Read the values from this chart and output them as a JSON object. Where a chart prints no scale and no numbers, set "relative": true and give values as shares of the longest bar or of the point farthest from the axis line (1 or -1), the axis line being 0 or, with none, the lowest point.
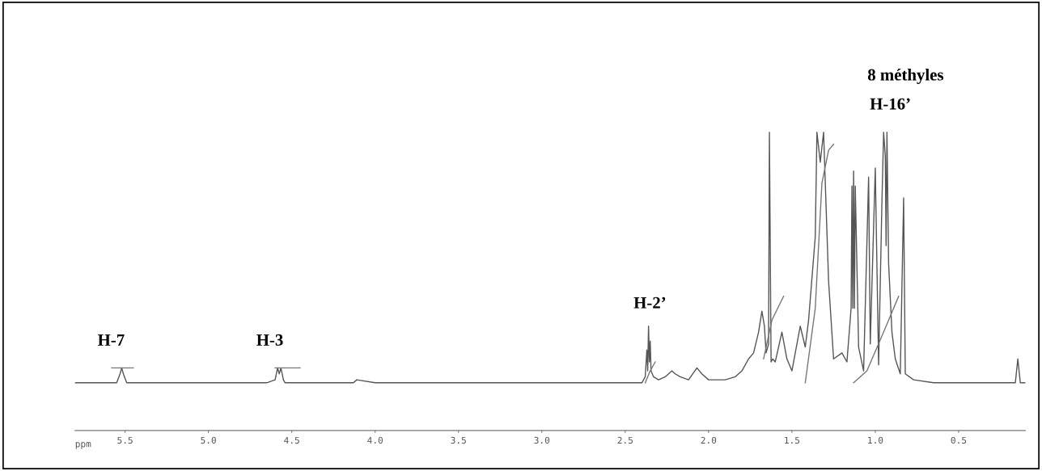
{
  "chart_data": {
    "type": "line",
    "relative": true,
    "xlabel": "ppm",
    "xlim": [
      5.8,
      0.1
    ],
    "xticks": [
      5.5,
      {
        "value": 5,
        "label": "5.0"
      },
      4.5,
      {
        "value": 4,
        "label": "4.0"
      },
      3.5,
      {
        "value": 3,
        "label": "3.0"
      },
      2.5,
      {
        "value": 2,
        "label": "2.0"
      },
      1.5,
      {
        "value": 1,
        "label": "1.0"
      },
      0.5
    ],
    "grid": false,
    "marker": "none",
    "line_style": "solid",
    "series": [
      {
        "color": "#555555",
        "x": [
          5.8,
          5.6,
          5.55,
          5.53,
          5.52,
          5.51,
          5.49,
          5.45,
          5.3,
          4.8,
          4.65,
          4.6,
          4.585,
          4.575,
          4.565,
          4.55,
          4.54,
          4.45,
          4.2,
          4.13,
          4.11,
          4.0,
          3.0,
          2.6,
          2.4,
          2.38,
          2.37,
          2.365,
          2.36,
          2.355,
          2.35,
          2.345,
          2.33,
          2.3,
          2.26,
          2.22,
          2.2,
          2.17,
          2.12,
          2.07,
          2.04,
          2.0,
          1.9,
          1.84,
          1.8,
          1.76,
          1.73,
          1.7,
          1.68,
          1.665,
          1.655,
          1.64,
          1.635,
          1.625,
          1.615,
          1.6,
          1.56,
          1.53,
          1.5,
          1.45,
          1.42,
          1.4,
          1.36,
          1.35,
          1.33,
          1.31,
          1.28,
          1.25,
          1.2,
          1.17,
          1.145,
          1.14,
          1.135,
          1.13,
          1.125,
          1.12,
          1.1,
          1.07,
          1.04,
          1.03,
          1.0,
          0.98,
          0.96,
          0.95,
          0.94,
          0.935,
          0.93,
          0.92,
          0.9,
          0.88,
          0.85,
          0.83,
          0.82,
          0.77,
          0.65,
          0.5,
          0.2,
          0.16,
          0.145,
          0.13,
          0.1
        ],
        "values": [
          0.16,
          0.16,
          0.16,
          0.19,
          0.21,
          0.19,
          0.16,
          0.16,
          0.16,
          0.16,
          0.16,
          0.17,
          0.21,
          0.19,
          0.21,
          0.17,
          0.16,
          0.16,
          0.16,
          0.16,
          0.17,
          0.16,
          0.16,
          0.16,
          0.16,
          0.18,
          0.27,
          0.2,
          0.35,
          0.23,
          0.3,
          0.2,
          0.18,
          0.17,
          0.18,
          0.2,
          0.19,
          0.18,
          0.17,
          0.21,
          0.19,
          0.17,
          0.17,
          0.18,
          0.2,
          0.24,
          0.26,
          0.33,
          0.4,
          0.35,
          0.26,
          0.29,
          1.0,
          0.23,
          0.24,
          0.23,
          0.33,
          0.24,
          0.2,
          0.35,
          0.28,
          0.37,
          0.65,
          1.0,
          0.9,
          1.0,
          0.5,
          0.24,
          0.26,
          0.23,
          0.41,
          0.82,
          0.41,
          0.87,
          0.41,
          0.82,
          0.28,
          0.2,
          0.85,
          0.29,
          0.88,
          0.22,
          0.77,
          1.0,
          0.92,
          0.62,
          1.0,
          0.56,
          0.33,
          0.24,
          0.19,
          0.78,
          0.19,
          0.17,
          0.16,
          0.16,
          0.16,
          0.16,
          0.24,
          0.16,
          0.16
        ]
      },
      {
        "color": "#777777",
        "x": [
          5.58,
          5.45,
          5.44,
          4.6,
          4.45,
          4.44,
          2.38,
          2.35,
          2.32,
          2.31,
          1.67,
          1.62,
          1.55,
          1.54,
          1.42,
          1.36,
          1.32,
          1.28,
          1.25,
          1.24,
          1.13,
          1.05,
          0.95,
          0.86
        ],
        "values": [
          0.21,
          0.21,
          null,
          0.21,
          0.21,
          null,
          0.16,
          0.2,
          0.23,
          null,
          0.24,
          0.37,
          0.45,
          null,
          0.16,
          0.41,
          0.83,
          0.94,
          0.96,
          null,
          0.16,
          0.2,
          0.33,
          0.45
        ]
      }
    ],
    "annotations": [
      "H-7",
      "H-3",
      "H-2’",
      "H-16’",
      "8 méthyles"
    ]
  }
}
